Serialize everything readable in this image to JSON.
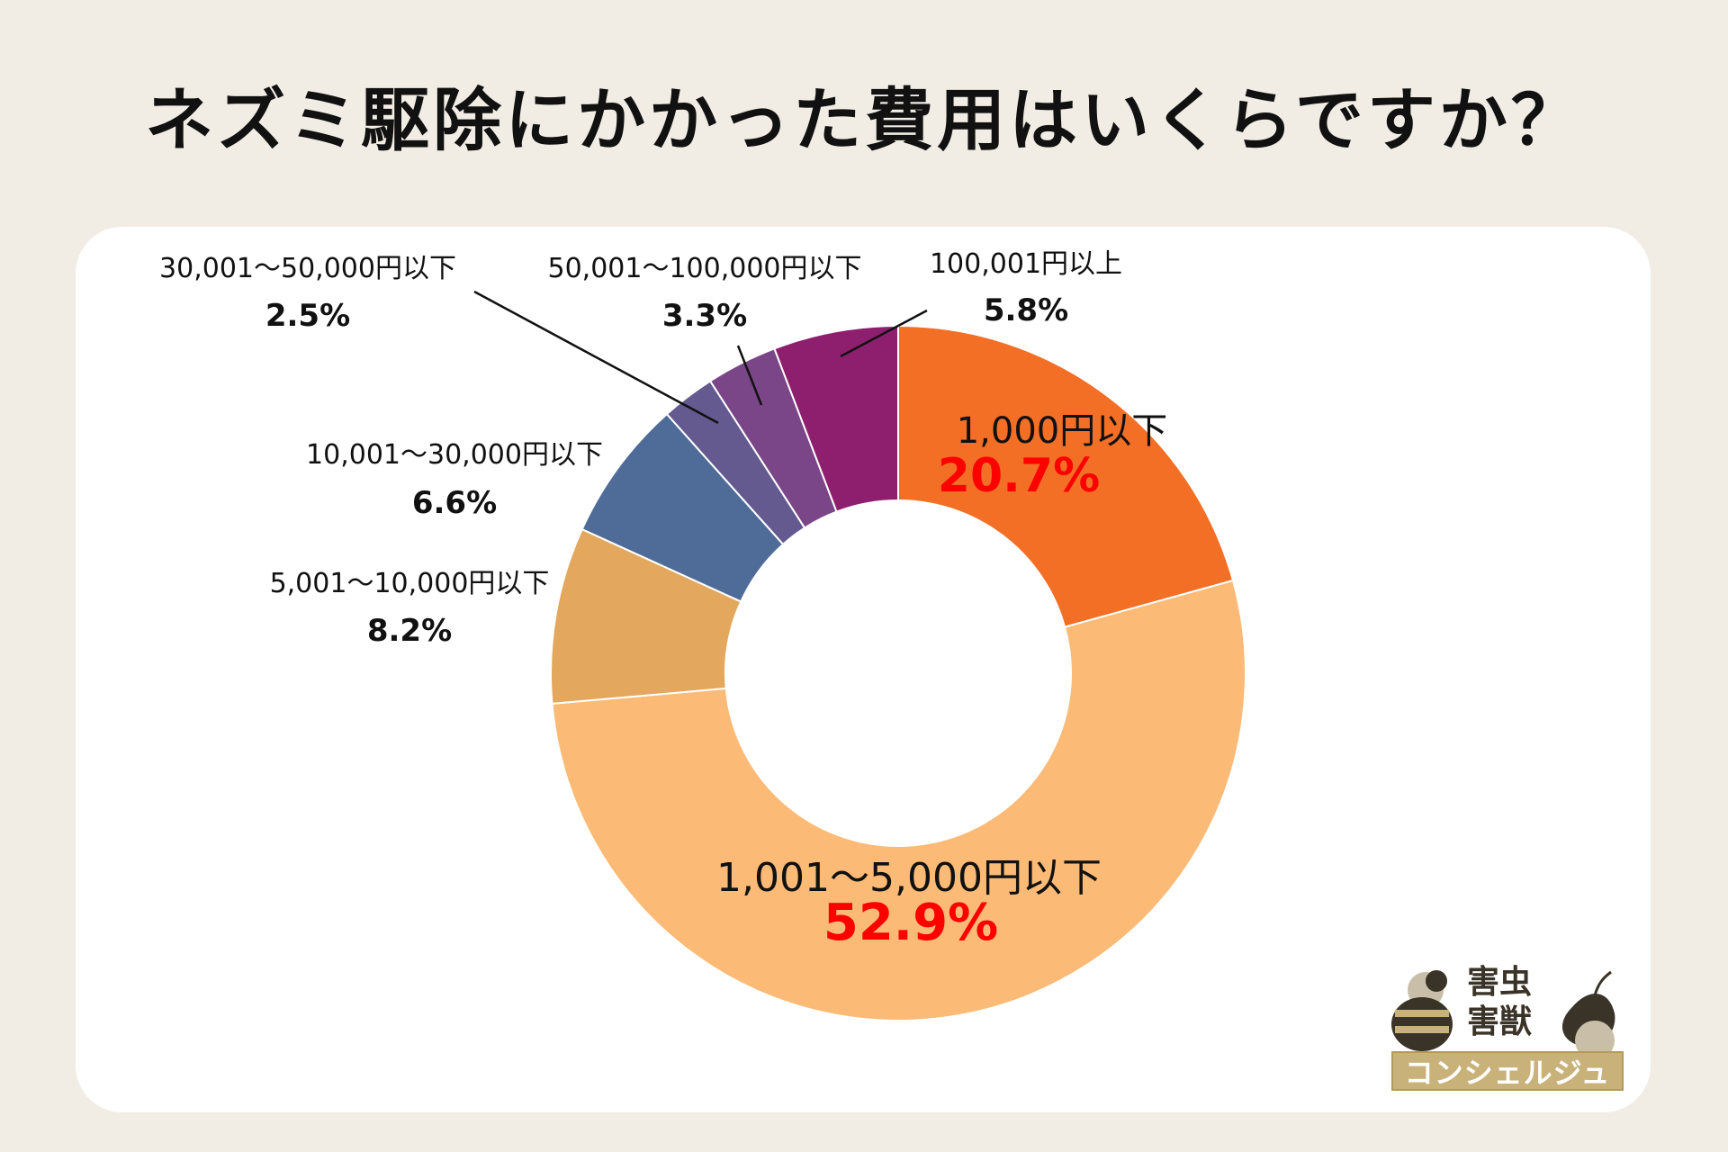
{
  "title": "ネズミ駆除にかかった費用はいくらですか？",
  "chart_data": {
    "type": "pie",
    "style": "donut",
    "categories": [
      "1,000円以下",
      "1,001〜5,000円以下",
      "5,001〜10,000円以下",
      "10,001〜30,000円以下",
      "30,001〜50,000円以下",
      "50,001〜100,000円以下",
      "100,001円以上"
    ],
    "values": [
      20.7,
      52.9,
      8.2,
      6.6,
      2.5,
      3.3,
      5.8
    ],
    "value_labels": [
      "20.7%",
      "52.9%",
      "8.2%",
      "6.6%",
      "2.5%",
      "3.3%",
      "5.8%"
    ],
    "colors": [
      "#f36f26",
      "#fbba76",
      "#e3a85d",
      "#4e6c97",
      "#655a90",
      "#7b4688",
      "#8e1f6e"
    ],
    "highlight_color": "#ff0000"
  },
  "logo": {
    "line1": "害虫",
    "line2": "害獣",
    "band": "コンシェルジュ"
  }
}
